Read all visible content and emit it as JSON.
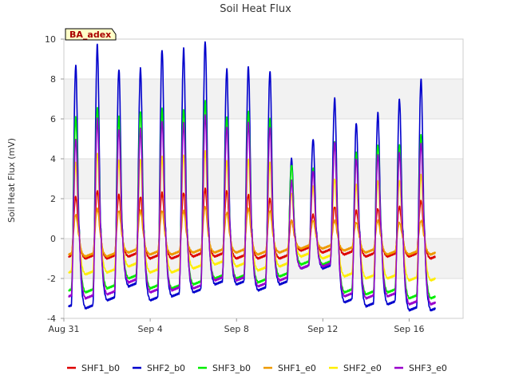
{
  "chart_data": {
    "type": "line",
    "title": "Soil Heat Flux",
    "xlabel": "",
    "ylabel": "Soil Heat Flux (mV)",
    "site_label": "BA_adex",
    "xlim": [
      0,
      18.5
    ],
    "ylim": [
      -4,
      10
    ],
    "x_ticks": [
      {
        "value": 0,
        "label": "Aug 31"
      },
      {
        "value": 4,
        "label": "Sep 4"
      },
      {
        "value": 8,
        "label": "Sep 8"
      },
      {
        "value": 12,
        "label": "Sep 12"
      },
      {
        "value": 16,
        "label": "Sep 16"
      }
    ],
    "y_ticks": [
      -4,
      -2,
      0,
      2,
      4,
      6,
      8,
      10
    ],
    "bands": [
      [
        -2,
        0
      ],
      [
        2,
        4
      ],
      [
        6,
        8
      ]
    ],
    "x_unit": "days since Aug 31",
    "peak_time": 0.55,
    "series": [
      {
        "name": "SHF1_b0",
        "color": "#dd0000",
        "peaks": [
          2.1,
          2.4,
          2.2,
          2.1,
          2.3,
          2.3,
          2.5,
          2.4,
          2.2,
          2.0,
          0.9,
          1.2,
          1.6,
          1.4,
          1.5,
          1.6,
          1.9
        ],
        "mins": [
          -1.0,
          -1.0,
          -0.9,
          -1.0,
          -1.0,
          -0.9,
          -0.9,
          -1.0,
          -1.0,
          -1.0,
          -0.6,
          -0.7,
          -0.8,
          -0.9,
          -0.9,
          -0.9,
          -1.0
        ]
      },
      {
        "name": "SHF2_b0",
        "color": "#0000cc",
        "peaks": [
          8.7,
          9.7,
          8.5,
          8.5,
          9.5,
          9.5,
          9.9,
          8.5,
          8.6,
          8.4,
          4.0,
          5.0,
          7.0,
          5.8,
          6.3,
          7.0,
          8.0
        ],
        "mins": [
          -3.5,
          -3.1,
          -2.4,
          -3.1,
          -2.9,
          -2.7,
          -2.3,
          -2.3,
          -2.6,
          -2.3,
          -1.5,
          -1.5,
          -3.2,
          -3.4,
          -3.3,
          -3.6,
          -3.6
        ]
      },
      {
        "name": "SHF3_b0",
        "color": "#00ee00",
        "peaks": [
          6.1,
          6.6,
          6.1,
          6.4,
          6.5,
          6.5,
          6.9,
          6.1,
          6.4,
          6.0,
          3.7,
          3.5,
          4.9,
          4.3,
          4.7,
          4.7,
          5.2
        ],
        "mins": [
          -2.7,
          -2.5,
          -2.0,
          -2.5,
          -2.5,
          -2.3,
          -2.0,
          -2.0,
          -2.2,
          -1.9,
          -1.3,
          -1.3,
          -2.7,
          -2.8,
          -2.7,
          -3.0,
          -3.0
        ]
      },
      {
        "name": "SHF1_e0",
        "color": "#ee9900",
        "peaks": [
          1.2,
          1.5,
          1.4,
          1.4,
          1.4,
          1.4,
          1.6,
          1.3,
          1.5,
          1.4,
          0.9,
          0.9,
          0.9,
          0.8,
          0.9,
          0.8,
          0.9
        ],
        "mins": [
          -0.9,
          -0.9,
          -0.7,
          -0.8,
          -0.8,
          -0.7,
          -0.7,
          -0.7,
          -0.8,
          -0.7,
          -0.5,
          -0.5,
          -0.6,
          -0.7,
          -0.8,
          -0.8,
          -0.8
        ]
      },
      {
        "name": "SHF2_e0",
        "color": "#ffee00",
        "peaks": [
          3.8,
          4.3,
          3.9,
          4.0,
          4.1,
          4.2,
          4.4,
          3.9,
          4.0,
          3.8,
          2.3,
          2.6,
          3.0,
          2.7,
          2.9,
          2.9,
          3.2
        ],
        "mins": [
          -1.8,
          -1.7,
          -1.4,
          -1.7,
          -1.7,
          -1.5,
          -1.3,
          -1.4,
          -1.6,
          -1.4,
          -0.9,
          -1.0,
          -1.9,
          -2.0,
          -2.0,
          -2.1,
          -2.1
        ]
      },
      {
        "name": "SHF3_e0",
        "color": "#9900cc",
        "peaks": [
          5.0,
          6.0,
          5.5,
          5.5,
          5.9,
          5.8,
          6.2,
          5.6,
          5.8,
          5.6,
          2.9,
          3.4,
          4.8,
          4.0,
          4.2,
          4.3,
          4.8
        ],
        "mins": [
          -3.0,
          -2.8,
          -2.2,
          -2.7,
          -2.6,
          -2.5,
          -2.1,
          -2.1,
          -2.4,
          -2.1,
          -1.5,
          -1.4,
          -2.9,
          -3.0,
          -2.9,
          -3.3,
          -3.3
        ]
      }
    ]
  }
}
